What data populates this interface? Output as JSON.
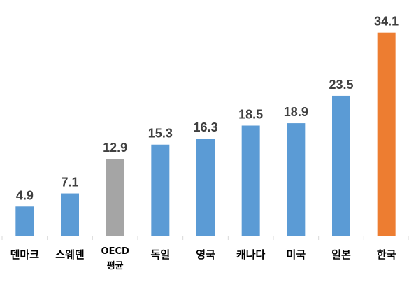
{
  "chart_data": {
    "type": "bar",
    "title": "",
    "xlabel": "",
    "ylabel": "",
    "ylim": [
      0,
      37
    ],
    "grid": false,
    "categories": [
      [
        "덴마크"
      ],
      [
        "스웨덴"
      ],
      [
        "OECD",
        "평균"
      ],
      [
        "독일"
      ],
      [
        "영국"
      ],
      [
        "캐나다"
      ],
      [
        "미국"
      ],
      [
        "일본"
      ],
      [
        "한국"
      ]
    ],
    "values": [
      4.9,
      7.1,
      12.9,
      15.3,
      16.3,
      18.5,
      18.9,
      23.5,
      34.1
    ],
    "value_labels": [
      "4.9",
      "7.1",
      "12.9",
      "15.3",
      "16.3",
      "18.5",
      "18.9",
      "23.5",
      "34.1"
    ],
    "bar_colors": [
      "#5B9BD5",
      "#5B9BD5",
      "#A5A5A5",
      "#5B9BD5",
      "#5B9BD5",
      "#5B9BD5",
      "#5B9BD5",
      "#5B9BD5",
      "#ED7D31"
    ]
  },
  "colors": {
    "default_bar": "#5B9BD5",
    "average_bar": "#A5A5A5",
    "highlight_bar": "#ED7D31",
    "axis": "#D9D9D9",
    "value_text": "#404040"
  }
}
